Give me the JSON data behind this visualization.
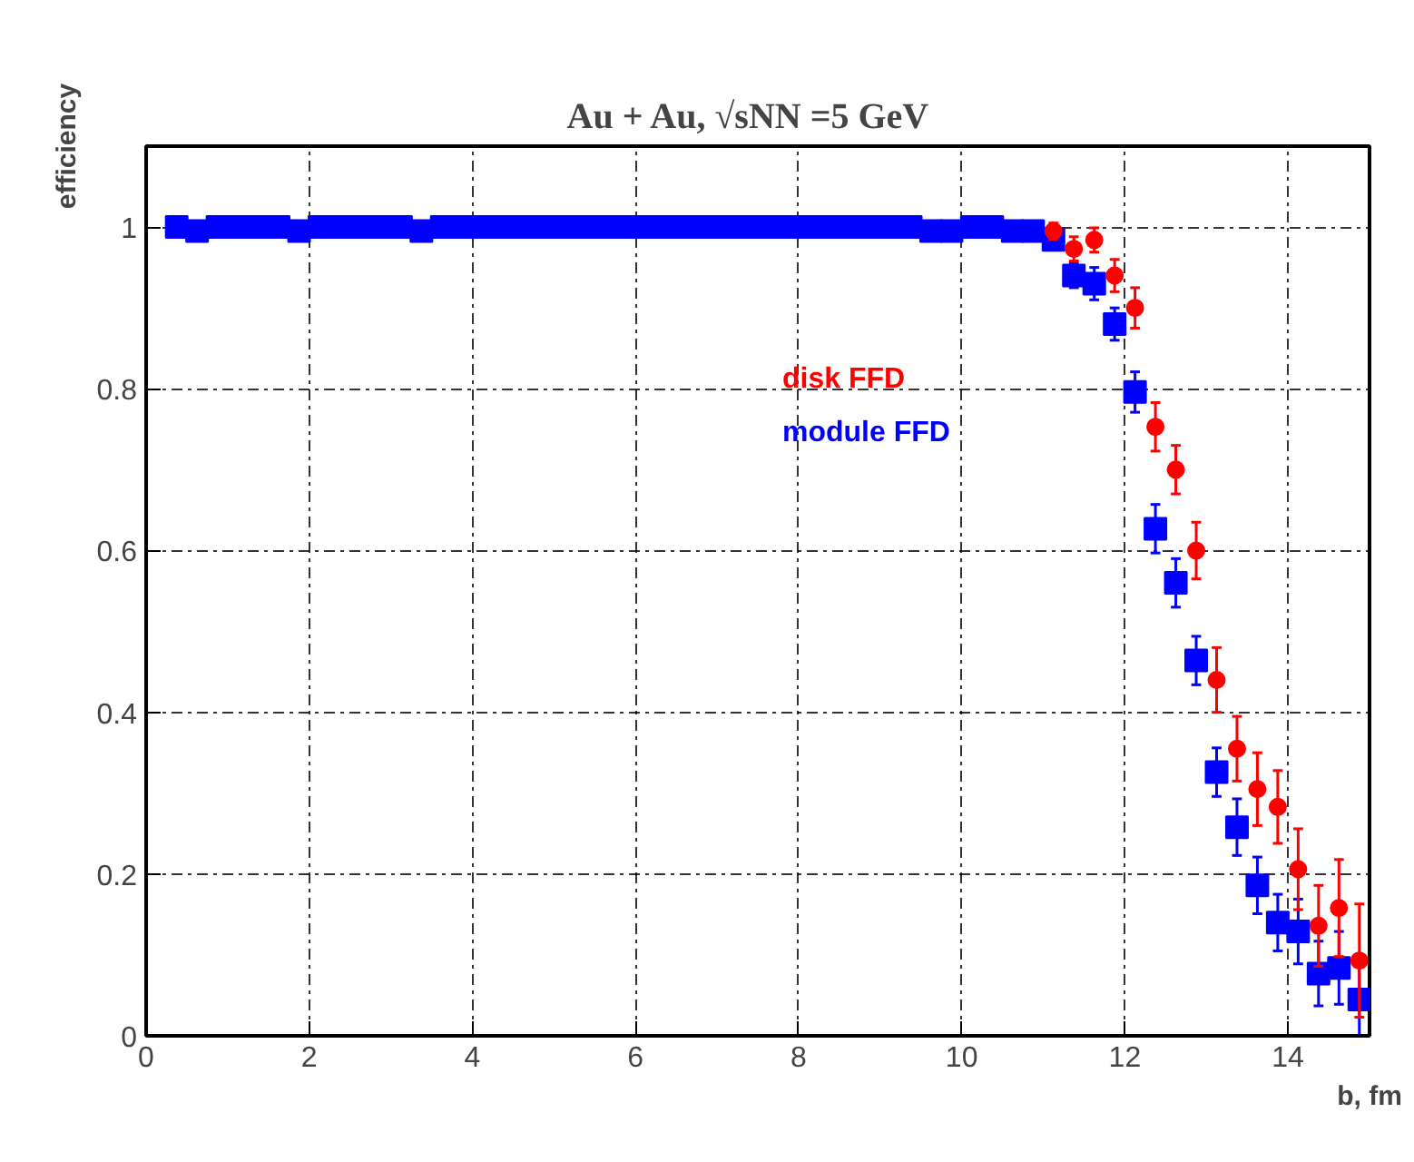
{
  "chart_data": {
    "type": "scatter",
    "title": "Au + Au,   √sNN =5 GeV",
    "xlabel": "b, fm",
    "ylabel": "efficiency",
    "xlim": [
      0,
      15
    ],
    "ylim": [
      0,
      1.1
    ],
    "xticks": [
      0,
      2,
      4,
      6,
      8,
      10,
      12,
      14
    ],
    "yticks": [
      0,
      0.2,
      0.4,
      0.6,
      0.8,
      1
    ],
    "grid": true,
    "line_style": "dashed",
    "legend": "center",
    "series": [
      {
        "name": "disk FFD",
        "color": "#ff0000",
        "marker": "circle",
        "x": [
          11.125,
          11.375,
          11.625,
          11.875,
          12.125,
          12.375,
          12.625,
          12.875,
          13.125,
          13.375,
          13.625,
          13.875,
          14.125,
          14.375,
          14.625,
          14.875
        ],
        "values": [
          0.995,
          0.973,
          0.984,
          0.94,
          0.9,
          0.753,
          0.7,
          0.6,
          0.44,
          0.355,
          0.305,
          0.283,
          0.206,
          0.136,
          0.158,
          0.093
        ],
        "errors": [
          0.01,
          0.015,
          0.015,
          0.02,
          0.025,
          0.03,
          0.03,
          0.035,
          0.04,
          0.04,
          0.045,
          0.045,
          0.05,
          0.05,
          0.06,
          0.07
        ]
      },
      {
        "name": "module FFD",
        "color": "#0000ff",
        "marker": "square",
        "x": [
          0.375,
          0.625,
          0.875,
          1.125,
          1.375,
          1.625,
          1.875,
          2.125,
          2.375,
          2.625,
          2.875,
          3.125,
          3.375,
          3.625,
          3.875,
          4.125,
          4.375,
          4.625,
          4.875,
          5.125,
          5.375,
          5.625,
          5.875,
          6.125,
          6.375,
          6.625,
          6.875,
          7.125,
          7.375,
          7.625,
          7.875,
          8.125,
          8.375,
          8.625,
          8.875,
          9.125,
          9.375,
          9.625,
          9.875,
          10.125,
          10.375,
          10.625,
          10.875,
          11.125,
          11.375,
          11.625,
          11.875,
          12.125,
          12.375,
          12.625,
          12.875,
          13.125,
          13.375,
          13.625,
          13.875,
          14.125,
          14.375,
          14.625,
          14.875
        ],
        "values": [
          1,
          0.995,
          1,
          1,
          1,
          1,
          0.995,
          1,
          1,
          1,
          1,
          1,
          0.995,
          1,
          1,
          1,
          1,
          1,
          1,
          1,
          1,
          1,
          1,
          1,
          1,
          1,
          1,
          1,
          1,
          1,
          1,
          1,
          1,
          1,
          1,
          1,
          1,
          0.995,
          0.995,
          1,
          1,
          0.995,
          0.995,
          0.984,
          0.94,
          0.93,
          0.88,
          0.796,
          0.627,
          0.56,
          0.464,
          0.326,
          0.258,
          0.186,
          0.14,
          0.129,
          0.077,
          0.084,
          0.045
        ],
        "errors": [
          0.005,
          0.005,
          0.005,
          0.005,
          0.005,
          0.005,
          0.005,
          0.005,
          0.005,
          0.005,
          0.005,
          0.005,
          0.005,
          0.005,
          0.005,
          0.005,
          0.005,
          0.005,
          0.005,
          0.005,
          0.005,
          0.005,
          0.005,
          0.005,
          0.005,
          0.005,
          0.005,
          0.005,
          0.005,
          0.005,
          0.005,
          0.005,
          0.005,
          0.005,
          0.005,
          0.005,
          0.005,
          0.005,
          0.005,
          0.005,
          0.005,
          0.005,
          0.005,
          0.01,
          0.015,
          0.02,
          0.02,
          0.025,
          0.03,
          0.03,
          0.03,
          0.03,
          0.035,
          0.035,
          0.035,
          0.04,
          0.04,
          0.045,
          0.045
        ]
      }
    ]
  }
}
